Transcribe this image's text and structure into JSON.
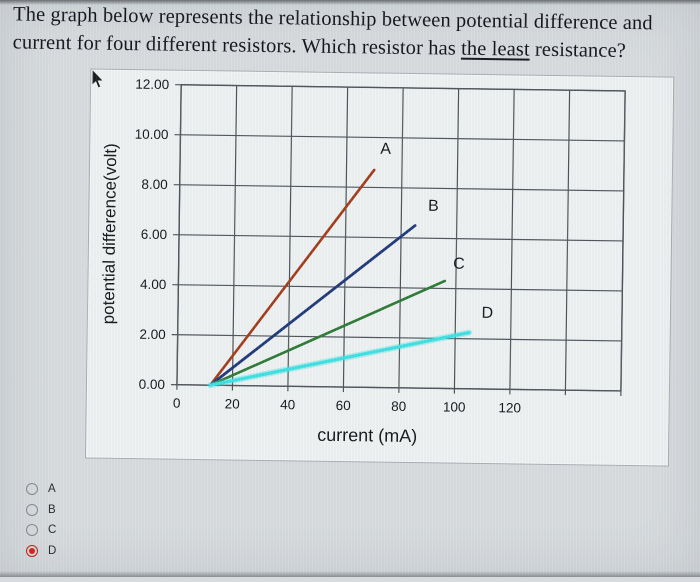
{
  "question": {
    "line1": "The graph below represents the relationship between potential difference and",
    "line2_before": "current for four different resistors. Which resistor has ",
    "line2_underlined": "the least",
    "line2_after": " resistance?"
  },
  "chart_data": {
    "type": "line",
    "title": "",
    "xlabel": "current (mA)",
    "ylabel": "potential difference(volt)",
    "xlim": [
      0,
      160
    ],
    "ylim": [
      0,
      12
    ],
    "grid": true,
    "x_grid_step": 20,
    "y_grid_step": 2,
    "x_tick_values": [
      0,
      20,
      40,
      60,
      80,
      100,
      120
    ],
    "x_tick_labels": [
      "0",
      "20",
      "40",
      "60",
      "80",
      "100",
      "120"
    ],
    "y_tick_values": [
      0,
      2,
      4,
      6,
      8,
      10,
      12
    ],
    "y_tick_labels": [
      "0.00",
      "2.00",
      "4.00",
      "6.00",
      "8.00",
      "10.00",
      "12.00"
    ],
    "series": [
      {
        "name": "A",
        "color": "#a23c1c",
        "width": 2.6,
        "points": [
          [
            12,
            0
          ],
          [
            70,
            8.7
          ]
        ],
        "label_at": [
          74,
          9.35
        ]
      },
      {
        "name": "B",
        "color": "#20397a",
        "width": 2.8,
        "points": [
          [
            12,
            0
          ],
          [
            85,
            6.5
          ]
        ],
        "label_at": [
          91.5,
          7.1
        ]
      },
      {
        "name": "C",
        "color": "#2d7a37",
        "width": 2.6,
        "points": [
          [
            12,
            0
          ],
          [
            96,
            4.3
          ]
        ],
        "label_at": [
          101,
          4.8
        ]
      },
      {
        "name": "D",
        "color": "#3ee0e2",
        "width": 3.2,
        "points": [
          [
            12,
            0
          ],
          [
            105,
            2.25
          ]
        ],
        "label_at": [
          111.5,
          2.85
        ]
      }
    ],
    "legend": "none"
  },
  "colors": {
    "grid": "#4e545a",
    "axis_text": "#17181d",
    "panel_border": "#a9adb2",
    "selected_radio": "#cc2a1c"
  },
  "options": [
    {
      "label": "A",
      "selected": false
    },
    {
      "label": "B",
      "selected": false
    },
    {
      "label": "C",
      "selected": false
    },
    {
      "label": "D",
      "selected": true
    }
  ]
}
